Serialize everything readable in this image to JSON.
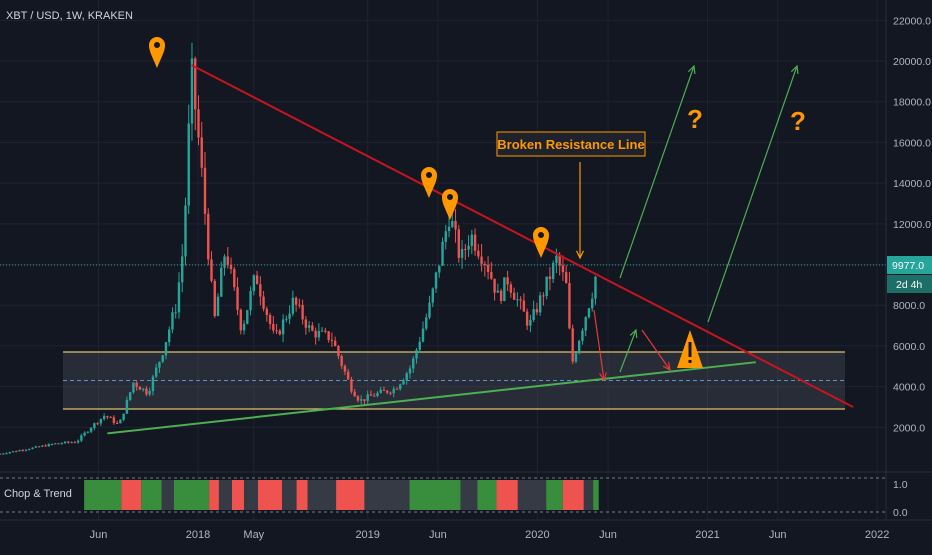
{
  "header": {
    "title": "XBT / USD, 1W, KRAKEN"
  },
  "indicator": {
    "label": "Chop & Trend"
  },
  "chart_data": {
    "type": "candlestick",
    "symbol": "XBT / USD",
    "interval": "1W",
    "exchange": "KRAKEN",
    "x_range": [
      "2016-11-01",
      "2022-01-20"
    ],
    "y_range": [
      0,
      23000
    ],
    "x_tick_labels": [
      {
        "label": "Jun",
        "date": "2017-06-01"
      },
      {
        "label": "2018",
        "date": "2018-01-01"
      },
      {
        "label": "May",
        "date": "2018-05-01"
      },
      {
        "label": "2019",
        "date": "2019-01-01"
      },
      {
        "label": "Jun",
        "date": "2019-06-01"
      },
      {
        "label": "2020",
        "date": "2020-01-01"
      },
      {
        "label": "Jun",
        "date": "2020-06-01"
      },
      {
        "label": "2021",
        "date": "2021-01-01"
      },
      {
        "label": "Jun",
        "date": "2021-06-01"
      },
      {
        "label": "2022",
        "date": "2022-01-01"
      }
    ],
    "y_ticks": [
      2000,
      4000,
      6000,
      8000,
      10000,
      12000,
      14000,
      16000,
      18000,
      20000,
      22000
    ],
    "y_tick_labels": [
      "2000.0",
      "4000.0",
      "6000.0",
      "8000.0",
      "10000.0",
      "12000.0",
      "14000.0",
      "16000.0",
      "18000.0",
      "20000.0",
      "22000.0"
    ],
    "current_price": 9977.0,
    "current_price_label": "9977.0",
    "countdown_label": "2d 4h",
    "price_path": [
      [
        "2016-11-01",
        700
      ],
      [
        "2017-01-01",
        950
      ],
      [
        "2017-03-01",
        1200
      ],
      [
        "2017-04-15",
        1300
      ],
      [
        "2017-05-15",
        2000
      ],
      [
        "2017-06-15",
        2600
      ],
      [
        "2017-07-15",
        2100
      ],
      [
        "2017-08-15",
        4200
      ],
      [
        "2017-09-15",
        3700
      ],
      [
        "2017-10-15",
        5600
      ],
      [
        "2017-11-15",
        8000
      ],
      [
        "2017-12-01",
        11000
      ],
      [
        "2017-12-18",
        19500
      ],
      [
        "2018-01-05",
        15500
      ],
      [
        "2018-02-05",
        7200
      ],
      [
        "2018-03-01",
        10800
      ],
      [
        "2018-04-05",
        6800
      ],
      [
        "2018-05-05",
        9500
      ],
      [
        "2018-06-15",
        6300
      ],
      [
        "2018-07-25",
        8200
      ],
      [
        "2018-09-01",
        6700
      ],
      [
        "2018-10-15",
        6400
      ],
      [
        "2018-11-25",
        4000
      ],
      [
        "2018-12-15",
        3300
      ],
      [
        "2019-01-15",
        3600
      ],
      [
        "2019-03-01",
        3900
      ],
      [
        "2019-04-05",
        5000
      ],
      [
        "2019-05-15",
        8000
      ],
      [
        "2019-06-26",
        12500
      ],
      [
        "2019-07-20",
        10200
      ],
      [
        "2019-08-10",
        11500
      ],
      [
        "2019-09-15",
        10000
      ],
      [
        "2019-10-10",
        8300
      ],
      [
        "2019-10-28",
        9300
      ],
      [
        "2019-12-15",
        7000
      ],
      [
        "2020-01-15",
        8700
      ],
      [
        "2020-02-12",
        10300
      ],
      [
        "2020-03-05",
        8800
      ],
      [
        "2020-03-14",
        5000
      ],
      [
        "2020-04-05",
        6800
      ],
      [
        "2020-04-30",
        8800
      ],
      [
        "2020-05-10",
        9977
      ]
    ],
    "support_zone": {
      "from": 2900,
      "to": 5700,
      "dashed_mid": 4300
    },
    "lines": [
      {
        "name": "descending resistance",
        "color": "#c8141e",
        "points": [
          [
            "2017-12-18",
            19800
          ],
          [
            "2021-11-10",
            3000
          ]
        ]
      },
      {
        "name": "ascending support",
        "color": "#4caf50",
        "points": [
          [
            "2017-06-20",
            1700
          ],
          [
            "2021-04-15",
            5200
          ]
        ]
      }
    ],
    "annotations": {
      "callout": "Broken Resistance Line",
      "question_marks": [
        "?",
        "?"
      ],
      "pins_at": [
        "2017-12-18",
        "2019-06-26",
        "2019-07-20",
        "2020-02-12"
      ]
    },
    "indicator_panel": {
      "name": "Chop & Trend",
      "y_ticks": [
        0.0,
        1.0
      ],
      "y_tick_labels": [
        "0.0",
        "1.0"
      ],
      "segments": [
        [
          "2017-05-01",
          "2017-07-20",
          "#388e3c"
        ],
        [
          "2017-07-20",
          "2017-09-01",
          "#ef5350"
        ],
        [
          "2017-09-01",
          "2017-10-15",
          "#388e3c"
        ],
        [
          "2017-10-15",
          "2017-11-10",
          "#363a45"
        ],
        [
          "2017-11-10",
          "2018-01-25",
          "#388e3c"
        ],
        [
          "2018-01-25",
          "2018-02-15",
          "#ef5350"
        ],
        [
          "2018-02-15",
          "2018-03-15",
          "#363a45"
        ],
        [
          "2018-03-15",
          "2018-04-10",
          "#ef5350"
        ],
        [
          "2018-04-10",
          "2018-05-10",
          "#363a45"
        ],
        [
          "2018-05-10",
          "2018-07-01",
          "#ef5350"
        ],
        [
          "2018-07-01",
          "2018-08-01",
          "#363a45"
        ],
        [
          "2018-08-01",
          "2018-08-25",
          "#ef5350"
        ],
        [
          "2018-08-25",
          "2018-10-25",
          "#363a45"
        ],
        [
          "2018-10-25",
          "2018-12-25",
          "#ef5350"
        ],
        [
          "2018-12-25",
          "2019-04-01",
          "#363a45"
        ],
        [
          "2019-04-01",
          "2019-07-20",
          "#388e3c"
        ],
        [
          "2019-07-20",
          "2019-08-25",
          "#363a45"
        ],
        [
          "2019-08-25",
          "2019-10-05",
          "#388e3c"
        ],
        [
          "2019-10-05",
          "2019-11-20",
          "#ef5350"
        ],
        [
          "2019-11-20",
          "2020-01-20",
          "#363a45"
        ],
        [
          "2020-01-20",
          "2020-02-25",
          "#388e3c"
        ],
        [
          "2020-02-25",
          "2020-04-10",
          "#ef5350"
        ],
        [
          "2020-04-10",
          "2020-04-30",
          "#363a45"
        ],
        [
          "2020-04-30",
          "2020-05-12",
          "#388e3c"
        ]
      ]
    },
    "colors": {
      "background": "#131722",
      "up": "#26a69a",
      "down": "#ef5350",
      "resistance": "#c8141e",
      "support": "#4caf50",
      "zone_border": "#e0c070",
      "annotation": "#ff9800",
      "price_line": "#26a69a"
    }
  }
}
